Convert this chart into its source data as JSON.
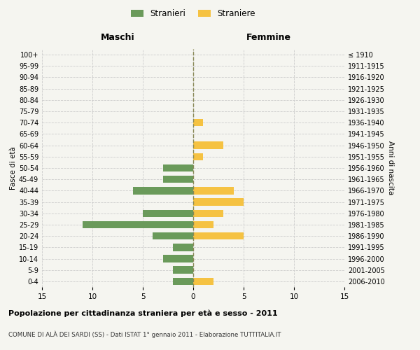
{
  "age_groups": [
    "0-4",
    "5-9",
    "10-14",
    "15-19",
    "20-24",
    "25-29",
    "30-34",
    "35-39",
    "40-44",
    "45-49",
    "50-54",
    "55-59",
    "60-64",
    "65-69",
    "70-74",
    "75-79",
    "80-84",
    "85-89",
    "90-94",
    "95-99",
    "100+"
  ],
  "birth_years": [
    "2006-2010",
    "2001-2005",
    "1996-2000",
    "1991-1995",
    "1986-1990",
    "1981-1985",
    "1976-1980",
    "1971-1975",
    "1966-1970",
    "1961-1965",
    "1956-1960",
    "1951-1955",
    "1946-1950",
    "1941-1945",
    "1936-1940",
    "1931-1935",
    "1926-1930",
    "1921-1925",
    "1916-1920",
    "1911-1915",
    "≤ 1910"
  ],
  "males": [
    2,
    2,
    3,
    2,
    4,
    11,
    5,
    0,
    6,
    3,
    3,
    0,
    0,
    0,
    0,
    0,
    0,
    0,
    0,
    0,
    0
  ],
  "females": [
    2,
    0,
    0,
    0,
    5,
    2,
    3,
    5,
    4,
    0,
    0,
    1,
    3,
    0,
    1,
    0,
    0,
    0,
    0,
    0,
    0
  ],
  "male_color": "#6a9a5a",
  "female_color": "#f5c242",
  "xlim": 15,
  "xlabel_left": "Maschi",
  "xlabel_right": "Femmine",
  "ylabel_left": "Fasce di età",
  "ylabel_right": "Anni di nascita",
  "title": "Popolazione per cittadinanza straniera per età e sesso - 2011",
  "subtitle": "COMUNE DI ALÀ DEI SARDI (SS) - Dati ISTAT 1° gennaio 2011 - Elaborazione TUTTITALIA.IT",
  "legend_male": "Stranieri",
  "legend_female": "Straniere",
  "bg_color": "#f5f5f0",
  "grid_color": "#cccccc"
}
